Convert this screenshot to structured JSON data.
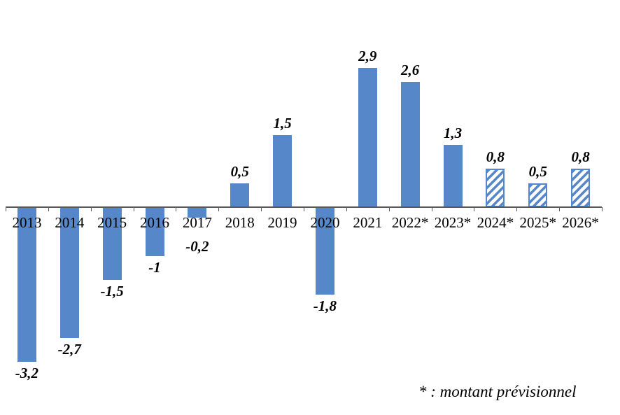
{
  "chart_data": {
    "type": "bar",
    "categories": [
      "2013",
      "2014",
      "2015",
      "2016",
      "2017",
      "2018",
      "2019",
      "2020",
      "2021",
      "2022*",
      "2023*",
      "2024*",
      "2025*",
      "2026*"
    ],
    "values": [
      -3.2,
      -2.7,
      -1.5,
      -1,
      -0.2,
      0.5,
      1.5,
      -1.8,
      2.9,
      2.6,
      1.3,
      0.8,
      0.5,
      0.8
    ],
    "value_labels": [
      "-3,2",
      "-2,7",
      "-1,5",
      "-1",
      "-0,2",
      "0,5",
      "1,5",
      "-1,8",
      "2,9",
      "2,6",
      "1,3",
      "0,8",
      "0,5",
      "0,8"
    ],
    "hatched": [
      false,
      false,
      false,
      false,
      false,
      false,
      false,
      false,
      false,
      false,
      false,
      true,
      true,
      true
    ],
    "title": "",
    "xlabel": "",
    "ylabel": "",
    "grid": false,
    "legend_position": "none",
    "y_axis_visible": false,
    "footnote": "* : montant prévisionnel",
    "colors": {
      "bar_fill": "#5587C9",
      "hatch_stripe": "#5587C9",
      "hatch_background": "#ffffff",
      "axis": "#595959",
      "text": "#000000"
    }
  }
}
